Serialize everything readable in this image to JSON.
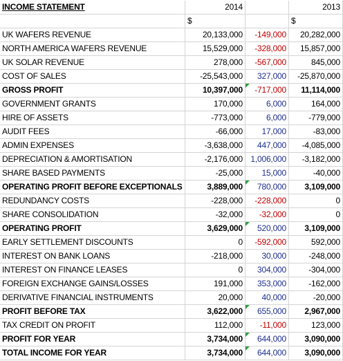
{
  "table": {
    "header": [
      "INCOME STATEMENT",
      "2014",
      null,
      "2013"
    ],
    "units": [
      null,
      "$",
      null,
      "$"
    ],
    "rows": [
      {
        "cells": [
          "UK WAFERS REVENUE",
          "20,133,000",
          "-149,000",
          "20,282,000"
        ],
        "bold": false
      },
      {
        "cells": [
          "NORTH AMERICA WAFERS REVENUE",
          "15,529,000",
          "-328,000",
          "15,857,000"
        ],
        "bold": false
      },
      {
        "cells": [
          "UK SOLAR REVENUE",
          "278,000",
          "-567,000",
          "845,000"
        ],
        "bold": false
      },
      {
        "cells": [
          "COST OF SALES",
          "-25,543,000",
          "327,000",
          "-25,870,000"
        ],
        "bold": false
      },
      {
        "cells": [
          "GROSS PROFIT",
          "10,397,000",
          "-717,000",
          "11,114,000"
        ],
        "bold": true
      },
      {
        "cells": [
          "GOVERNMENT GRANTS",
          "170,000",
          "6,000",
          "164,000"
        ],
        "bold": false
      },
      {
        "cells": [
          "HIRE OF ASSETS",
          "-773,000",
          "6,000",
          "-779,000"
        ],
        "bold": false
      },
      {
        "cells": [
          "AUDIT FEES",
          "-66,000",
          "17,000",
          "-83,000"
        ],
        "bold": false
      },
      {
        "cells": [
          "ADMIN EXPENSES",
          "-3,638,000",
          "447,000",
          "-4,085,000"
        ],
        "bold": false
      },
      {
        "cells": [
          "DEPRECIATION & AMORTISATION",
          "-2,176,000",
          "1,006,000",
          "-3,182,000"
        ],
        "bold": false
      },
      {
        "cells": [
          "SHARE BASED PAYMENTS",
          "-25,000",
          "15,000",
          "-40,000"
        ],
        "bold": false
      },
      {
        "cells": [
          "OPERATING PROFIT BEFORE EXCEPTIONALS",
          "3,889,000",
          "780,000",
          "3,109,000"
        ],
        "bold": true
      },
      {
        "cells": [
          "REDUNDANCY COSTS",
          "-228,000",
          "-228,000",
          "0"
        ],
        "bold": false
      },
      {
        "cells": [
          "SHARE CONSOLIDATION",
          "-32,000",
          "-32,000",
          "0"
        ],
        "bold": false
      },
      {
        "cells": [
          "OPERATING PROFIT",
          "3,629,000",
          "520,000",
          "3,109,000"
        ],
        "bold": true
      },
      {
        "cells": [
          "EARLY SETTLEMENT DISCOUNTS",
          "0",
          "-592,000",
          "592,000"
        ],
        "bold": false
      },
      {
        "cells": [
          "INTEREST ON BANK LOANS",
          "-218,000",
          "30,000",
          "-248,000"
        ],
        "bold": false
      },
      {
        "cells": [
          "INTEREST ON FINANCE LEASES",
          "0",
          "304,000",
          "-304,000"
        ],
        "bold": false
      },
      {
        "cells": [
          "FOREIGN EXCHANGE GAINS/LOSSES",
          "191,000",
          "353,000",
          "-162,000"
        ],
        "bold": false
      },
      {
        "cells": [
          "DERIVATIVE FINANCIAL INSTRUMENTS",
          "20,000",
          "40,000",
          "-20,000"
        ],
        "bold": false
      },
      {
        "cells": [
          "PROFIT BEFORE TAX",
          "3,622,000",
          "655,000",
          "2,967,000"
        ],
        "bold": true
      },
      {
        "cells": [
          "TAX CREDIT ON PROFIT",
          "112,000",
          "-11,000",
          "123,000"
        ],
        "bold": false
      },
      {
        "cells": [
          "PROFIT FOR YEAR",
          "3,734,000",
          "644,000",
          "3,090,000"
        ],
        "bold": true
      },
      {
        "cells": [
          "TOTAL INCOME FOR YEAR",
          "3,734,000",
          "644,000",
          "3,090,000"
        ],
        "bold": true
      }
    ]
  }
}
